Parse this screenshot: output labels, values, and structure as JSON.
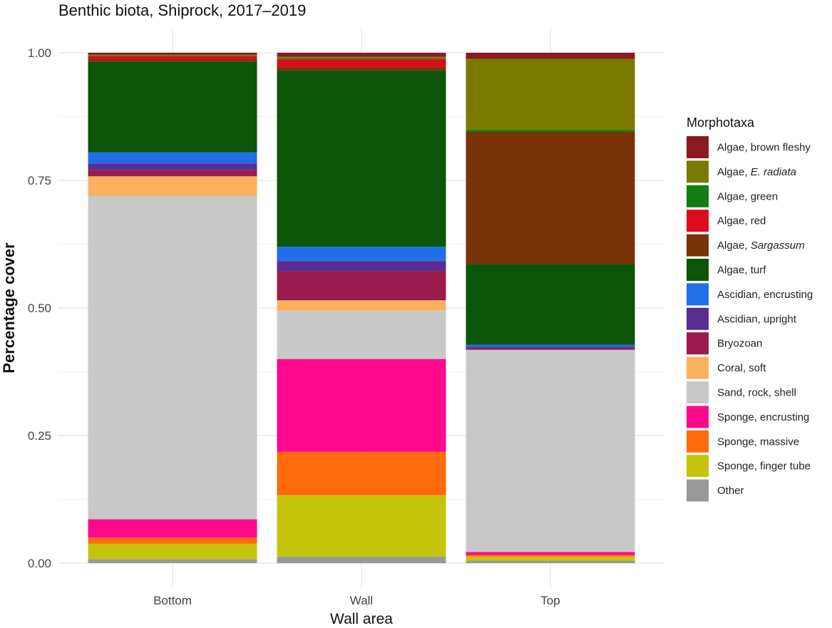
{
  "chart_data": {
    "type": "bar",
    "stacked": true,
    "title": "Benthic biota, Shiprock, 2017–2019",
    "xlabel": "Wall area",
    "ylabel": "Percentage cover",
    "ylim": [
      0,
      1
    ],
    "yticks": [
      "0.00",
      "0.25",
      "0.50",
      "0.75",
      "1.00"
    ],
    "grid": true,
    "legend_title": "Morphotaxa",
    "legend_position": "right",
    "categories": [
      "Bottom",
      "Wall",
      "Top"
    ],
    "series": [
      {
        "name": "Other",
        "color": "#999999",
        "values": [
          0.008,
          0.013,
          0.005
        ]
      },
      {
        "name": "Sponge, finger tube",
        "color": "#c4c40a",
        "values": [
          0.03,
          0.12,
          0.008
        ]
      },
      {
        "name": "Sponge, massive",
        "color": "#ff6a0a",
        "values": [
          0.012,
          0.085,
          0.003
        ]
      },
      {
        "name": "Sponge, encrusting",
        "color": "#ff0a8c",
        "values": [
          0.036,
          0.182,
          0.006
        ]
      },
      {
        "name": "Sand, rock, shell",
        "color": "#c8c8c8",
        "values": [
          0.634,
          0.095,
          0.396
        ]
      },
      {
        "name": "Coral, soft",
        "color": "#fbb05e",
        "values": [
          0.038,
          0.02,
          0.0
        ]
      },
      {
        "name": "Bryozoan",
        "color": "#9b1b4d",
        "values": [
          0.012,
          0.057,
          0.003
        ]
      },
      {
        "name": "Ascidian, upright",
        "color": "#5a2d91",
        "values": [
          0.013,
          0.02,
          0.003
        ]
      },
      {
        "name": "Ascidian, encrusting",
        "color": "#1e6fe8",
        "values": [
          0.022,
          0.028,
          0.004
        ]
      },
      {
        "name": "Algae, turf",
        "color": "#0b5509",
        "values": [
          0.178,
          0.345,
          0.158
        ]
      },
      {
        "name": "Algae, Sargassum",
        "color": "#7a3306",
        "values": [
          0.003,
          0.007,
          0.259
        ]
      },
      {
        "name": "Algae, red",
        "color": "#dd0a1e",
        "values": [
          0.007,
          0.015,
          0.0
        ]
      },
      {
        "name": "Algae, green",
        "color": "#117e11",
        "values": [
          0.001,
          0.002,
          0.004
        ]
      },
      {
        "name": "Algae, E. radiata",
        "color": "#7a7a00",
        "values": [
          0.002,
          0.003,
          0.139
        ]
      },
      {
        "name": "Algae, brown fleshy",
        "color": "#8b1a22",
        "values": [
          0.004,
          0.008,
          0.012
        ]
      }
    ]
  },
  "legend": {
    "title": "Morphotaxa",
    "items": [
      {
        "prefix": "Algae, brown fleshy",
        "italic": "",
        "color": "#8b1a22"
      },
      {
        "prefix": "Algae, ",
        "italic": "E. radiata",
        "color": "#7a7a00"
      },
      {
        "prefix": "Algae, green",
        "italic": "",
        "color": "#117e11"
      },
      {
        "prefix": "Algae, red",
        "italic": "",
        "color": "#dd0a1e"
      },
      {
        "prefix": "Algae, ",
        "italic": "Sargassum",
        "color": "#7a3306"
      },
      {
        "prefix": "Algae, turf",
        "italic": "",
        "color": "#0b5509"
      },
      {
        "prefix": "Ascidian, encrusting",
        "italic": "",
        "color": "#1e6fe8"
      },
      {
        "prefix": "Ascidian, upright",
        "italic": "",
        "color": "#5a2d91"
      },
      {
        "prefix": "Bryozoan",
        "italic": "",
        "color": "#9b1b4d"
      },
      {
        "prefix": "Coral, soft",
        "italic": "",
        "color": "#fbb05e"
      },
      {
        "prefix": "Sand, rock, shell",
        "italic": "",
        "color": "#c8c8c8"
      },
      {
        "prefix": "Sponge, encrusting",
        "italic": "",
        "color": "#ff0a8c"
      },
      {
        "prefix": "Sponge, massive",
        "italic": "",
        "color": "#ff6a0a"
      },
      {
        "prefix": "Sponge, finger tube",
        "italic": "",
        "color": "#c4c40a"
      },
      {
        "prefix": "Other",
        "italic": "",
        "color": "#999999"
      }
    ]
  }
}
